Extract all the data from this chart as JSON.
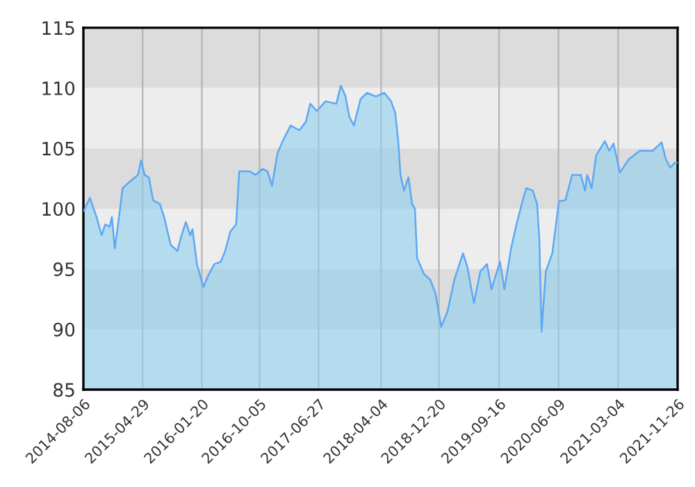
{
  "chart_data": {
    "type": "area",
    "x": [
      "2014-08-07",
      "2014-09-04",
      "2014-10-04",
      "2014-10-27",
      "2014-11-12",
      "2014-12-02",
      "2014-12-12",
      "2014-12-25",
      "2015-01-13",
      "2015-01-29",
      "2015-02-28",
      "2015-04-08",
      "2015-04-22",
      "2015-05-08",
      "2015-05-27",
      "2015-06-15",
      "2015-07-15",
      "2015-08-04",
      "2015-09-02",
      "2015-10-02",
      "2015-10-21",
      "2015-11-09",
      "2015-11-29",
      "2015-12-09",
      "2015-12-29",
      "2016-01-27",
      "2016-02-16",
      "2016-03-16",
      "2016-04-14",
      "2016-05-04",
      "2016-05-27",
      "2016-06-22",
      "2016-07-06",
      "2016-08-20",
      "2016-09-18",
      "2016-10-18",
      "2016-11-10",
      "2016-11-30",
      "2016-12-25",
      "2017-01-17",
      "2017-02-22",
      "2017-04-02",
      "2017-05-01",
      "2017-05-21",
      "2017-06-19",
      "2017-07-29",
      "2017-09-15",
      "2017-10-05",
      "2017-10-25",
      "2017-11-13",
      "2017-12-03",
      "2018-01-02",
      "2018-01-31",
      "2018-03-11",
      "2018-04-19",
      "2018-05-19",
      "2018-06-07",
      "2018-06-21",
      "2018-06-30",
      "2018-07-16",
      "2018-08-05",
      "2018-08-21",
      "2018-09-03",
      "2018-09-13",
      "2018-10-13",
      "2018-11-11",
      "2018-12-04",
      "2018-12-30",
      "2019-01-28",
      "2019-02-27",
      "2019-04-07",
      "2019-04-26",
      "2019-05-26",
      "2019-06-24",
      "2019-07-24",
      "2019-08-13",
      "2019-09-20",
      "2019-10-10",
      "2019-11-09",
      "2019-11-28",
      "2019-12-27",
      "2020-01-16",
      "2020-02-14",
      "2020-03-05",
      "2020-03-15",
      "2020-03-25",
      "2020-04-13",
      "2020-05-12",
      "2020-06-11",
      "2020-07-10",
      "2020-08-09",
      "2020-09-17",
      "2020-10-06",
      "2020-10-16",
      "2020-11-05",
      "2020-11-25",
      "2021-01-03",
      "2021-01-23",
      "2021-02-11",
      "2021-03-12",
      "2021-04-21",
      "2021-06-09",
      "2021-08-06",
      "2021-09-15",
      "2021-10-04",
      "2021-10-24",
      "2021-11-13",
      "2021-11-26"
    ],
    "series": [
      {
        "color": "#5ba8f5",
        "values": [
          99.8,
          100.9,
          99.3,
          97.8,
          98.7,
          98.5,
          99.3,
          96.7,
          99.3,
          101.7,
          102.2,
          102.8,
          104.0,
          102.8,
          102.6,
          100.7,
          100.4,
          99.3,
          97.0,
          96.5,
          97.8,
          98.9,
          97.8,
          98.3,
          95.4,
          93.5,
          94.4,
          95.4,
          95.6,
          96.5,
          98.1,
          98.7,
          103.1,
          103.1,
          102.8,
          103.3,
          103.1,
          101.9,
          104.6,
          105.6,
          106.9,
          106.5,
          107.2,
          108.7,
          108.1,
          108.9,
          108.7,
          110.2,
          109.4,
          107.6,
          106.9,
          109.1,
          109.6,
          109.3,
          109.6,
          108.9,
          107.9,
          105.4,
          102.8,
          101.5,
          102.6,
          100.4,
          100.0,
          95.9,
          94.6,
          94.1,
          93.0,
          90.2,
          91.5,
          94.1,
          96.3,
          95.2,
          92.2,
          94.8,
          95.4,
          93.3,
          95.6,
          93.3,
          96.7,
          98.3,
          100.4,
          101.7,
          101.5,
          100.4,
          97.4,
          89.8,
          94.8,
          96.3,
          100.6,
          100.7,
          102.8,
          102.8,
          101.5,
          102.8,
          101.7,
          104.4,
          105.6,
          104.8,
          105.4,
          103.0,
          104.1,
          104.8,
          104.8,
          105.5,
          104.1,
          103.4,
          103.8,
          103.8
        ]
      }
    ],
    "xlim": [
      "2014-08-06",
      "2021-11-26"
    ],
    "xticks": [
      {
        "value": "2014-08-06",
        "label": "2014-08-06"
      },
      {
        "value": "2015-04-29",
        "label": "2015-04-29"
      },
      {
        "value": "2016-01-20",
        "label": "2016-01-20"
      },
      {
        "value": "2016-10-05",
        "label": "2016-10-05"
      },
      {
        "value": "2017-06-27",
        "label": "2017-06-27"
      },
      {
        "value": "2018-04-04",
        "label": "2018-04-04"
      },
      {
        "value": "2018-12-20",
        "label": "2018-12-20"
      },
      {
        "value": "2019-09-16",
        "label": "2019-09-16"
      },
      {
        "value": "2020-06-09",
        "label": "2020-06-09"
      },
      {
        "value": "2021-03-04",
        "label": "2021-03-04"
      },
      {
        "value": "2021-11-26",
        "label": "2021-11-26"
      }
    ],
    "ylim": [
      85,
      115
    ],
    "yticks": [
      85,
      90,
      95,
      100,
      105,
      110,
      115
    ],
    "grid": "x",
    "bands": [
      {
        "axis": "y",
        "from": 110,
        "to": 115,
        "color": "#dcdcdc"
      },
      {
        "axis": "y",
        "from": 105,
        "to": 110,
        "color": "#ededed"
      },
      {
        "axis": "y",
        "from": 100,
        "to": 105,
        "color": "#dcdcdc"
      },
      {
        "axis": "y",
        "from": 95,
        "to": 100,
        "color": "#ededed"
      },
      {
        "axis": "y",
        "from": 90,
        "to": 95,
        "color": "#dcdcdc"
      },
      {
        "axis": "y",
        "from": 85,
        "to": 90,
        "color": "#ededed"
      }
    ]
  }
}
